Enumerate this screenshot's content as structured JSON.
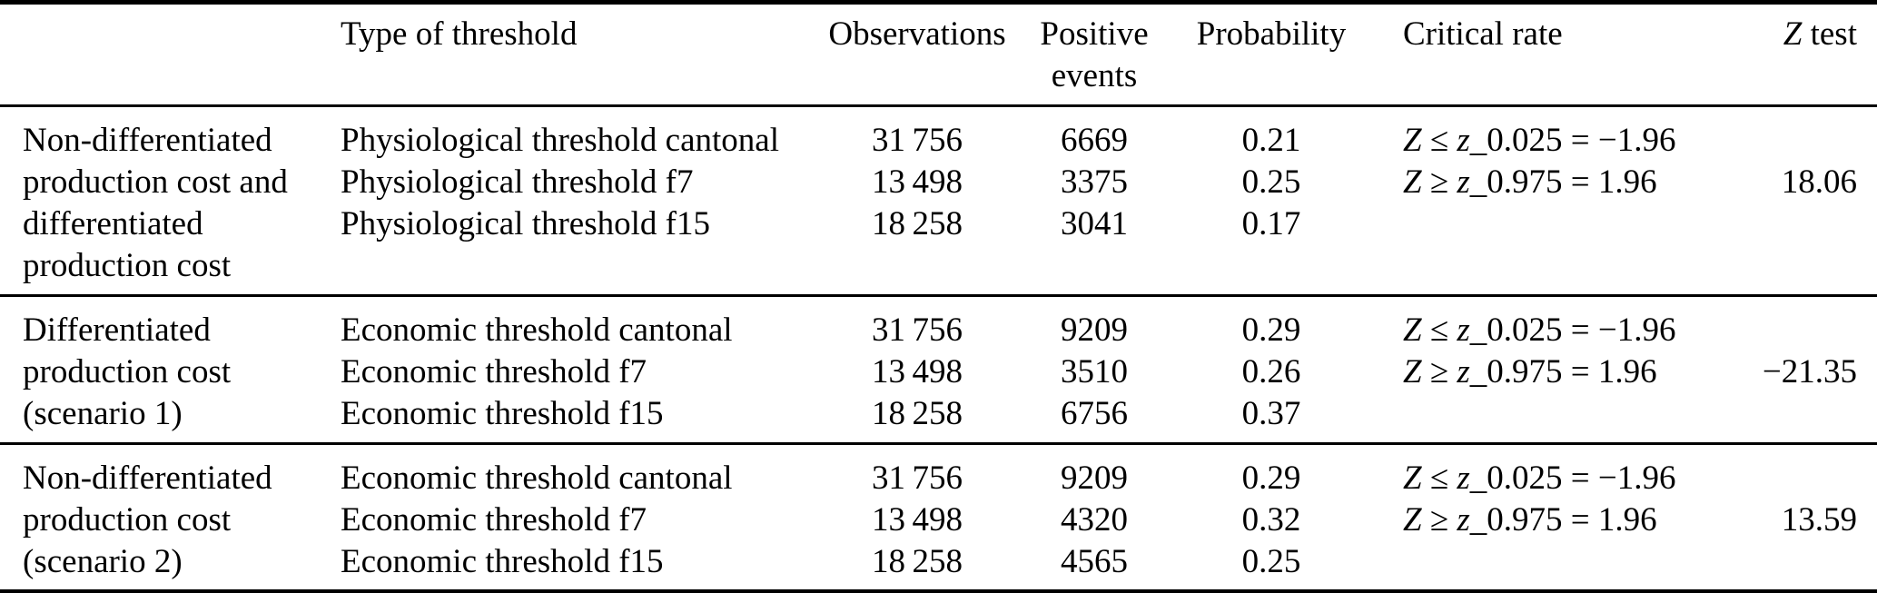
{
  "colors": {
    "text": "#000000",
    "background": "#ffffff",
    "rule": "#000000"
  },
  "table": {
    "headers": {
      "type": "Type of threshold",
      "observations": "Observations",
      "positive_line1": "Positive",
      "positive_line2": "events",
      "probability": "Probability",
      "critical_rate": "Critical rate",
      "ztest_var": "Z",
      "ztest_rest": " test"
    },
    "critical_rate": {
      "var": "Z",
      "op_le": " ≤ ",
      "op_ge": " ≥ ",
      "zvar": "z",
      "line1_rest": "_0.025 = −1.96",
      "line2_rest": "_0.975 = 1.96"
    },
    "groups": [
      {
        "label_lines": [
          "Non-differentiated",
          "production cost and",
          "differentiated",
          "production cost"
        ],
        "rows": [
          {
            "type": "Physiological threshold cantonal",
            "observations": "31 756",
            "positive_events": "6669",
            "probability": "0.21"
          },
          {
            "type": "Physiological threshold f7",
            "observations": "13 498",
            "positive_events": "3375",
            "probability": "0.25"
          },
          {
            "type": "Physiological threshold f15",
            "observations": "18 258",
            "positive_events": "3041",
            "probability": "0.17"
          }
        ],
        "z_test": "18.06"
      },
      {
        "label_lines": [
          "Differentiated",
          "production cost",
          "(scenario 1)"
        ],
        "rows": [
          {
            "type": "Economic threshold cantonal",
            "observations": "31 756",
            "positive_events": "9209",
            "probability": "0.29"
          },
          {
            "type": "Economic threshold f7",
            "observations": "13 498",
            "positive_events": "3510",
            "probability": "0.26"
          },
          {
            "type": "Economic threshold f15",
            "observations": "18 258",
            "positive_events": "6756",
            "probability": "0.37"
          }
        ],
        "z_test": "−21.35"
      },
      {
        "label_lines": [
          "Non-differentiated",
          "production cost",
          "(scenario 2)"
        ],
        "rows": [
          {
            "type": "Economic threshold cantonal",
            "observations": "31 756",
            "positive_events": "9209",
            "probability": "0.29"
          },
          {
            "type": "Economic threshold f7",
            "observations": "13 498",
            "positive_events": "4320",
            "probability": "0.32"
          },
          {
            "type": "Economic threshold f15",
            "observations": "18 258",
            "positive_events": "4565",
            "probability": "0.25"
          }
        ],
        "z_test": "13.59"
      }
    ]
  }
}
